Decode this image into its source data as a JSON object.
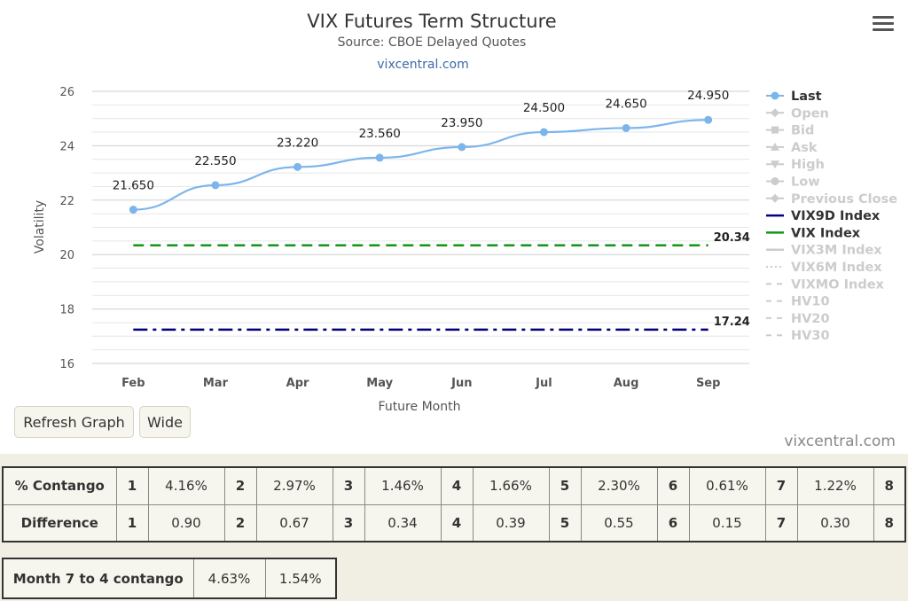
{
  "chart": {
    "title": "VIX Futures Term Structure",
    "subtitle": "Source: CBOE Delayed Quotes",
    "credit": "vixcentral.com"
  },
  "chart_data": {
    "type": "line",
    "categories": [
      "Feb",
      "Mar",
      "Apr",
      "May",
      "Jun",
      "Jul",
      "Aug",
      "Sep"
    ],
    "series": [
      {
        "name": "Last",
        "values": [
          21.65,
          22.55,
          23.22,
          23.56,
          23.95,
          24.5,
          24.65,
          24.95
        ],
        "labels": [
          "21.650",
          "22.550",
          "23.220",
          "23.560",
          "23.950",
          "24.500",
          "24.650",
          "24.950"
        ],
        "color": "#7cb5ec"
      },
      {
        "name": "VIX Index",
        "values": [
          20.34,
          20.34,
          20.34,
          20.34,
          20.34,
          20.34,
          20.34,
          20.34
        ],
        "end_label": "20.34",
        "color": "#109618",
        "dash": "dash"
      },
      {
        "name": "VIX9D Index",
        "values": [
          17.24,
          17.24,
          17.24,
          17.24,
          17.24,
          17.24,
          17.24,
          17.24
        ],
        "end_label": "17.24",
        "color": "#000080",
        "dash": "dashdot"
      }
    ],
    "xlabel": "Future Month",
    "ylabel": "Volatility",
    "ylim": [
      16,
      26
    ],
    "yticks": [
      16,
      18,
      20,
      22,
      24,
      26
    ],
    "grid": true,
    "legend_position": "right"
  },
  "legend": [
    {
      "label": "Last",
      "active": true,
      "symbol": "circle-line",
      "color": "#7cb5ec"
    },
    {
      "label": "Open",
      "active": false,
      "symbol": "diamond"
    },
    {
      "label": "Bid",
      "active": false,
      "symbol": "square"
    },
    {
      "label": "Ask",
      "active": false,
      "symbol": "triangle-up"
    },
    {
      "label": "High",
      "active": false,
      "symbol": "triangle-down"
    },
    {
      "label": "Low",
      "active": false,
      "symbol": "circle"
    },
    {
      "label": "Previous Close",
      "active": false,
      "symbol": "diamond"
    },
    {
      "label": "VIX9D Index",
      "active": true,
      "symbol": "line",
      "color": "#000080"
    },
    {
      "label": "VIX Index",
      "active": true,
      "symbol": "line",
      "color": "#109618"
    },
    {
      "label": "VIX3M Index",
      "active": false,
      "symbol": "line"
    },
    {
      "label": "VIX6M Index",
      "active": false,
      "symbol": "dotted"
    },
    {
      "label": "VIXMO Index",
      "active": false,
      "symbol": "dash"
    },
    {
      "label": "HV10",
      "active": false,
      "symbol": "dash"
    },
    {
      "label": "HV20",
      "active": false,
      "symbol": "dash"
    },
    {
      "label": "HV30",
      "active": false,
      "symbol": "dash"
    }
  ],
  "buttons": {
    "refresh": "Refresh Graph",
    "wide": "Wide"
  },
  "footer_credit": "vixcentral.com",
  "contango_table": {
    "rows": [
      {
        "label": "% Contango",
        "cells": [
          {
            "n": "1",
            "v": "4.16%"
          },
          {
            "n": "2",
            "v": "2.97%"
          },
          {
            "n": "3",
            "v": "1.46%"
          },
          {
            "n": "4",
            "v": "1.66%"
          },
          {
            "n": "5",
            "v": "2.30%"
          },
          {
            "n": "6",
            "v": "0.61%"
          },
          {
            "n": "7",
            "v": "1.22%"
          }
        ],
        "last": "8"
      },
      {
        "label": "Difference",
        "cells": [
          {
            "n": "1",
            "v": "0.90"
          },
          {
            "n": "2",
            "v": "0.67"
          },
          {
            "n": "3",
            "v": "0.34"
          },
          {
            "n": "4",
            "v": "0.39"
          },
          {
            "n": "5",
            "v": "0.55"
          },
          {
            "n": "6",
            "v": "0.15"
          },
          {
            "n": "7",
            "v": "0.30"
          }
        ],
        "last": "8"
      }
    ]
  },
  "month_table": {
    "label": "Month 7 to 4 contango",
    "v1": "4.63%",
    "v2": "1.54%"
  }
}
